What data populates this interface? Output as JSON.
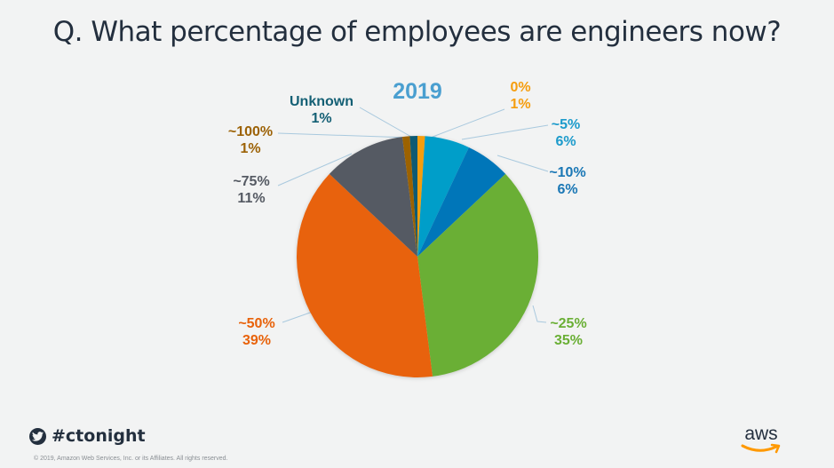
{
  "title": "Q. What percentage of employees are engineers now?",
  "chart_data": {
    "type": "pie",
    "title": "2019",
    "title_color": "#4a9fd0",
    "start": "top",
    "direction": "clockwise",
    "slices": [
      {
        "category": "0%",
        "value": 1,
        "label": "1%",
        "color": "#f59d0e",
        "label_color": "#f59d0e"
      },
      {
        "category": "~5%",
        "value": 6,
        "label": "6%",
        "color": "#049ec9",
        "label_color": "#1d9bcb"
      },
      {
        "category": "~10%",
        "value": 6,
        "label": "6%",
        "color": "#0076b9",
        "label_color": "#1a77b5"
      },
      {
        "category": "~25%",
        "value": 35,
        "label": "35%",
        "color": "#6aaf35",
        "label_color": "#6aaf35"
      },
      {
        "category": "~50%",
        "value": 39,
        "label": "39%",
        "color": "#e8620a",
        "label_color": "#e8620a"
      },
      {
        "category": "~75%",
        "value": 11,
        "label": "11%",
        "color": "#555a63",
        "label_color": "#555a63"
      },
      {
        "category": "~100%",
        "value": 1,
        "label": "1%",
        "color": "#9c6206",
        "label_color": "#9c6206"
      },
      {
        "category": "Unknown",
        "value": 1,
        "label": "1%",
        "color": "#0b5a73",
        "label_color": "#135f74"
      }
    ],
    "legend": "none",
    "leader_line_color": "#a9c9de"
  },
  "footer": {
    "hashtag": "#ctonight",
    "copyright": "© 2019, Amazon Web Services, Inc. or its Affiliates. All rights reserved.",
    "logo_text": "aws"
  }
}
